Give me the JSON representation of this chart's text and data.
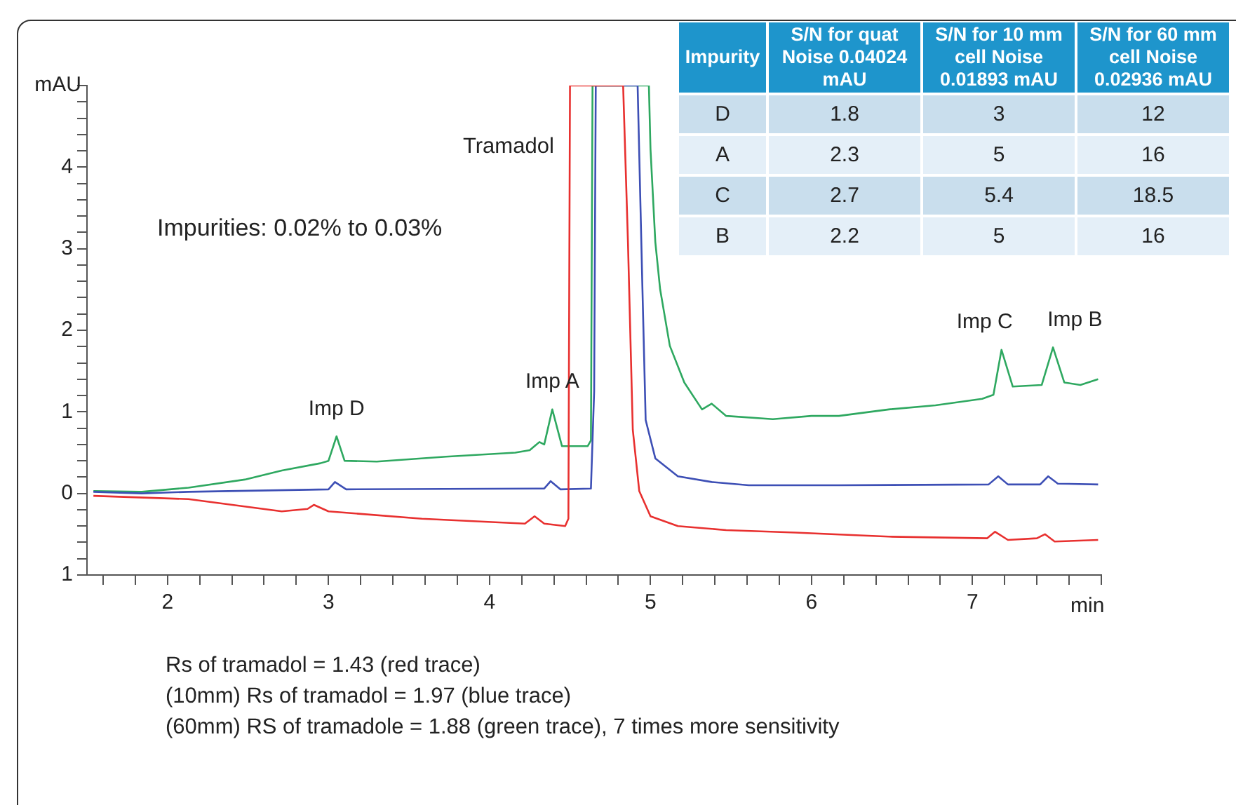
{
  "chart_data": [
    {
      "type": "line",
      "xlabel": "min",
      "ylabel": "mAU",
      "xlim": [
        1.5,
        7.8
      ],
      "ylim": [
        -1,
        5
      ],
      "xticks": [
        {
          "value": 1.6,
          "label": null
        },
        {
          "value": 1.8,
          "label": null
        },
        2,
        {
          "value": 2.2,
          "label": null
        },
        {
          "value": 2.4,
          "label": null
        },
        {
          "value": 2.6,
          "label": null
        },
        {
          "value": 2.8,
          "label": null
        },
        3,
        {
          "value": 3.2,
          "label": null
        },
        {
          "value": 3.4,
          "label": null
        },
        {
          "value": 3.6,
          "label": null
        },
        {
          "value": 3.8,
          "label": null
        },
        4,
        {
          "value": 4.2,
          "label": null
        },
        {
          "value": 4.4,
          "label": null
        },
        {
          "value": 4.6,
          "label": null
        },
        {
          "value": 4.8,
          "label": null
        },
        5,
        {
          "value": 5.2,
          "label": null
        },
        {
          "value": 5.4,
          "label": null
        },
        {
          "value": 5.6,
          "label": null
        },
        {
          "value": 5.8,
          "label": null
        },
        6,
        {
          "value": 6.2,
          "label": null
        },
        {
          "value": 6.4,
          "label": null
        },
        {
          "value": 6.6,
          "label": null
        },
        {
          "value": 6.8,
          "label": null
        },
        7,
        {
          "value": 7.2,
          "label": null
        },
        {
          "value": 7.4,
          "label": null
        },
        {
          "value": 7.6,
          "label": null
        },
        {
          "value": 7.8,
          "label": null
        }
      ],
      "yticks": [
        {
          "value": -1,
          "label": "1"
        },
        {
          "value": -0.8,
          "label": null
        },
        {
          "value": -0.6,
          "label": null
        },
        {
          "value": -0.4,
          "label": null
        },
        {
          "value": -0.2,
          "label": null
        },
        0,
        {
          "value": 0.2,
          "label": null
        },
        {
          "value": 0.4,
          "label": null
        },
        {
          "value": 0.6,
          "label": null
        },
        {
          "value": 0.8,
          "label": null
        },
        1,
        {
          "value": 1.2,
          "label": null
        },
        {
          "value": 1.4,
          "label": null
        },
        {
          "value": 1.6,
          "label": null
        },
        {
          "value": 1.8,
          "label": null
        },
        2,
        {
          "value": 2.2,
          "label": null
        },
        {
          "value": 2.4,
          "label": null
        },
        {
          "value": 2.6,
          "label": null
        },
        {
          "value": 2.8,
          "label": null
        },
        3,
        {
          "value": 3.2,
          "label": null
        },
        {
          "value": 3.4,
          "label": null
        },
        {
          "value": 3.6,
          "label": null
        },
        {
          "value": 3.8,
          "label": null
        },
        4,
        {
          "value": 4.2,
          "label": null
        },
        {
          "value": 4.4,
          "label": null
        },
        {
          "value": 4.6,
          "label": null
        },
        {
          "value": 4.8,
          "label": null
        },
        {
          "value": 5,
          "label": null
        }
      ],
      "series": [
        {
          "color": "#e8302f",
          "x": [
            1.54,
            2.13,
            2.71,
            2.87,
            2.91,
            3.0,
            3.58,
            4.22,
            4.28,
            4.34,
            4.47,
            4.49,
            4.5,
            4.83,
            4.86,
            4.89,
            4.93,
            5.0,
            5.17,
            5.47,
            5.9,
            6.48,
            7.09,
            7.14,
            7.22,
            7.4,
            7.45,
            7.51,
            7.78
          ],
          "values": [
            -0.03,
            -0.07,
            -0.22,
            -0.19,
            -0.14,
            -0.22,
            -0.31,
            -0.37,
            -0.28,
            -0.37,
            -0.4,
            -0.31,
            5,
            5,
            3.08,
            0.78,
            0.03,
            -0.28,
            -0.4,
            -0.45,
            -0.48,
            -0.53,
            -0.55,
            -0.47,
            -0.57,
            -0.55,
            -0.5,
            -0.59,
            -0.57
          ]
        },
        {
          "color": "#3d4fb5",
          "x": [
            1.54,
            1.84,
            2.13,
            3.0,
            3.04,
            3.11,
            4.34,
            4.38,
            4.44,
            4.63,
            4.65,
            4.66,
            4.92,
            4.95,
            4.97,
            5.03,
            5.17,
            5.38,
            5.61,
            6.17,
            7.1,
            7.16,
            7.22,
            7.42,
            7.47,
            7.53,
            7.78
          ],
          "values": [
            0.02,
            0.0,
            0.02,
            0.05,
            0.14,
            0.05,
            0.06,
            0.15,
            0.05,
            0.06,
            1.25,
            5,
            5,
            2.5,
            0.9,
            0.43,
            0.21,
            0.14,
            0.1,
            0.1,
            0.11,
            0.21,
            0.11,
            0.11,
            0.21,
            0.12,
            0.11
          ]
        },
        {
          "color": "#2ea860",
          "x": [
            1.54,
            1.84,
            2.13,
            2.48,
            2.71,
            2.95,
            3.0,
            3.05,
            3.1,
            3.3,
            3.73,
            4.16,
            4.25,
            4.31,
            4.34,
            4.39,
            4.45,
            4.61,
            4.63,
            4.64,
            4.99,
            5.0,
            5.03,
            5.06,
            5.12,
            5.21,
            5.32,
            5.38,
            5.47,
            5.76,
            6.0,
            6.17,
            6.48,
            6.77,
            7.06,
            7.13,
            7.18,
            7.25,
            7.43,
            7.5,
            7.57,
            7.67,
            7.78
          ],
          "values": [
            0.03,
            0.02,
            0.07,
            0.17,
            0.28,
            0.37,
            0.4,
            0.7,
            0.4,
            0.39,
            0.45,
            0.5,
            0.53,
            0.63,
            0.6,
            1.03,
            0.58,
            0.58,
            0.65,
            5,
            5,
            4.22,
            3.08,
            2.5,
            1.81,
            1.36,
            1.03,
            1.1,
            0.95,
            0.91,
            0.95,
            0.95,
            1.03,
            1.08,
            1.16,
            1.21,
            1.76,
            1.31,
            1.33,
            1.79,
            1.36,
            1.33,
            1.4
          ]
        }
      ],
      "annotations": [
        "Impurities: 0.02% to 0.03%",
        "Tramadol",
        {
          "text": "Imp D",
          "x": 3.05,
          "y": 0.7
        },
        {
          "text": "Imp A",
          "x": 4.39,
          "y": 1.03
        },
        {
          "text": "Imp C",
          "x": 7.18,
          "y": 1.76
        },
        {
          "text": "Imp B",
          "x": 7.5,
          "y": 1.79
        },
        "Rs of tramadol = 1.43 (red trace)",
        "(10mm) Rs of tramadol = 1.97 (blue trace)",
        "(60mm) RS of tramadole = 1.88 (green trace), 7 times more sensitivity"
      ]
    },
    {
      "type": "heatmap",
      "data_labels": true,
      "ylabel": "Impurity",
      "categories": [
        "S/N for quat Noise 0.04024 mAU",
        "S/N for 10 mm cell Noise 0.01893 mAU",
        "S/N for 60 mm cell Noise 0.02936 mAU"
      ],
      "y_categories": [
        "D",
        "A",
        "C",
        "B"
      ],
      "cells": [
        [
          1.8,
          3,
          12
        ],
        [
          2.3,
          5,
          16
        ],
        [
          2.7,
          5.4,
          18.5
        ],
        [
          2.2,
          5,
          16
        ]
      ]
    }
  ]
}
